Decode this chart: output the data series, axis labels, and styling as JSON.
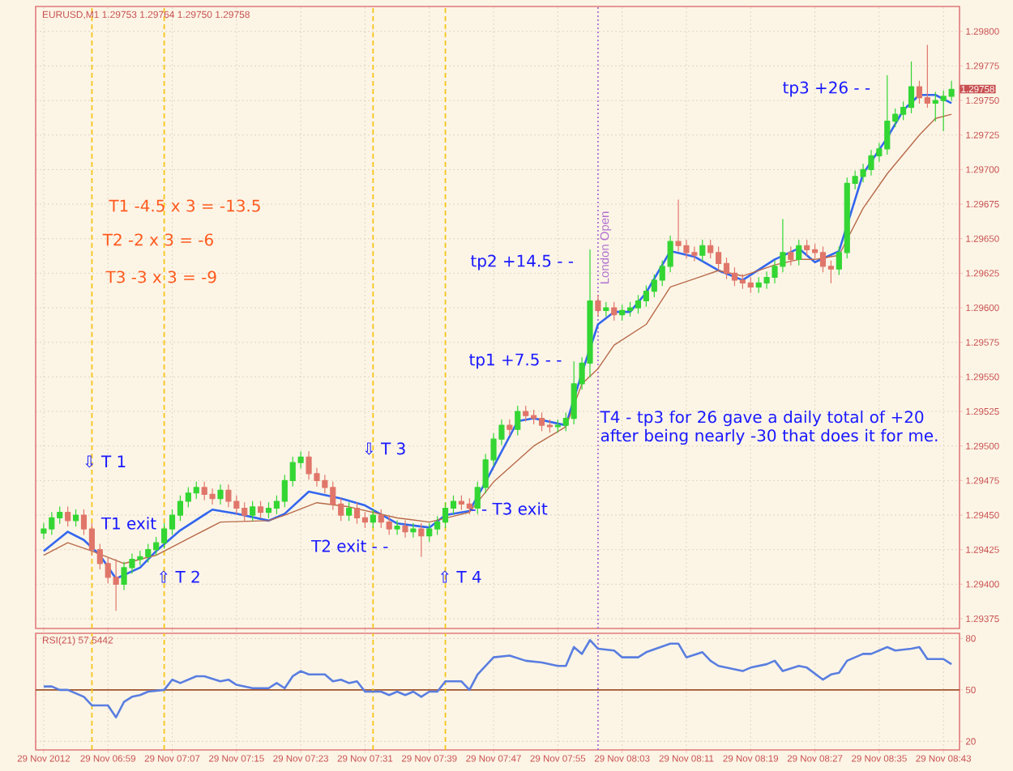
{
  "chart_data": [
    {
      "type": "candlestick",
      "title": "EURUSD,M1 1.29753 1.29764 1.29750 1.29758",
      "x": [
        "2012-11-29T06:51",
        "2012-11-29T06:52",
        "2012-11-29T06:53",
        "2012-11-29T06:54",
        "2012-11-29T06:55",
        "2012-11-29T06:56",
        "2012-11-29T06:57",
        "2012-11-29T06:58",
        "2012-11-29T06:59",
        "2012-11-29T07:00",
        "2012-11-29T07:01",
        "2012-11-29T07:02",
        "2012-11-29T07:03",
        "2012-11-29T07:04",
        "2012-11-29T07:05",
        "2012-11-29T07:06",
        "2012-11-29T07:07",
        "2012-11-29T07:08",
        "2012-11-29T07:09",
        "2012-11-29T07:10",
        "2012-11-29T07:11",
        "2012-11-29T07:12",
        "2012-11-29T07:13",
        "2012-11-29T07:14",
        "2012-11-29T07:15",
        "2012-11-29T07:16",
        "2012-11-29T07:17",
        "2012-11-29T07:18",
        "2012-11-29T07:19",
        "2012-11-29T07:20",
        "2012-11-29T07:21",
        "2012-11-29T07:22",
        "2012-11-29T07:23",
        "2012-11-29T07:24",
        "2012-11-29T07:25",
        "2012-11-29T07:26",
        "2012-11-29T07:27",
        "2012-11-29T07:28",
        "2012-11-29T07:29",
        "2012-11-29T07:30",
        "2012-11-29T07:31",
        "2012-11-29T07:32",
        "2012-11-29T07:33",
        "2012-11-29T07:34",
        "2012-11-29T07:35",
        "2012-11-29T07:36",
        "2012-11-29T07:37",
        "2012-11-29T07:38",
        "2012-11-29T07:39",
        "2012-11-29T07:40",
        "2012-11-29T07:41",
        "2012-11-29T07:42",
        "2012-11-29T07:43",
        "2012-11-29T07:44",
        "2012-11-29T07:45",
        "2012-11-29T07:46",
        "2012-11-29T07:47",
        "2012-11-29T07:48",
        "2012-11-29T07:49",
        "2012-11-29T07:50",
        "2012-11-29T07:51",
        "2012-11-29T07:52",
        "2012-11-29T07:53",
        "2012-11-29T07:54",
        "2012-11-29T07:55",
        "2012-11-29T07:56",
        "2012-11-29T07:57",
        "2012-11-29T07:58",
        "2012-11-29T07:59",
        "2012-11-29T08:00",
        "2012-11-29T08:01",
        "2012-11-29T08:02",
        "2012-11-29T08:03",
        "2012-11-29T08:04",
        "2012-11-29T08:05",
        "2012-11-29T08:06",
        "2012-11-29T08:07",
        "2012-11-29T08:08",
        "2012-11-29T08:09",
        "2012-11-29T08:10",
        "2012-11-29T08:11",
        "2012-11-29T08:12",
        "2012-11-29T08:13",
        "2012-11-29T08:14",
        "2012-11-29T08:15",
        "2012-11-29T08:16",
        "2012-11-29T08:17",
        "2012-11-29T08:18",
        "2012-11-29T08:19",
        "2012-11-29T08:20",
        "2012-11-29T08:21",
        "2012-11-29T08:22",
        "2012-11-29T08:23",
        "2012-11-29T08:24",
        "2012-11-29T08:25",
        "2012-11-29T08:26",
        "2012-11-29T08:27",
        "2012-11-29T08:28",
        "2012-11-29T08:29",
        "2012-11-29T08:30",
        "2012-11-29T08:31",
        "2012-11-29T08:32",
        "2012-11-29T08:33",
        "2012-11-29T08:34",
        "2012-11-29T08:35",
        "2012-11-29T08:36",
        "2012-11-29T08:37",
        "2012-11-29T08:38",
        "2012-11-29T08:39",
        "2012-11-29T08:40",
        "2012-11-29T08:41",
        "2012-11-29T08:42",
        "2012-11-29T08:43",
        "2012-11-29T08:44"
      ],
      "ohlc": [
        [
          1.29437,
          1.29444,
          1.29433,
          1.2944
        ],
        [
          1.2944,
          1.29452,
          1.29436,
          1.29448
        ],
        [
          1.29448,
          1.29456,
          1.29444,
          1.29452
        ],
        [
          1.29452,
          1.29456,
          1.29442,
          1.29446
        ],
        [
          1.29446,
          1.29454,
          1.29442,
          1.2945
        ],
        [
          1.2945,
          1.29454,
          1.29436,
          1.2944
        ],
        [
          1.2944,
          1.29444,
          1.29421,
          1.29425
        ],
        [
          1.29425,
          1.29429,
          1.29411,
          1.29415
        ],
        [
          1.29415,
          1.29419,
          1.29401,
          1.29405
        ],
        [
          1.29405,
          1.29418,
          1.29381,
          1.294
        ],
        [
          1.294,
          1.29416,
          1.29396,
          1.29412
        ],
        [
          1.29412,
          1.29422,
          1.29408,
          1.29418
        ],
        [
          1.29418,
          1.29424,
          1.29414,
          1.2942
        ],
        [
          1.2942,
          1.29429,
          1.29416,
          1.29425
        ],
        [
          1.29425,
          1.29434,
          1.29421,
          1.2943
        ],
        [
          1.2943,
          1.29444,
          1.29426,
          1.2944
        ],
        [
          1.2944,
          1.29454,
          1.29436,
          1.2945
        ],
        [
          1.2945,
          1.29464,
          1.29446,
          1.2946
        ],
        [
          1.2946,
          1.2947,
          1.29456,
          1.29466
        ],
        [
          1.29466,
          1.29474,
          1.29462,
          1.2947
        ],
        [
          1.2947,
          1.29474,
          1.29461,
          1.29465
        ],
        [
          1.29465,
          1.29469,
          1.29458,
          1.29462
        ],
        [
          1.29462,
          1.29472,
          1.29458,
          1.29468
        ],
        [
          1.29468,
          1.29472,
          1.29456,
          1.2946
        ],
        [
          1.2946,
          1.29464,
          1.29451,
          1.29455
        ],
        [
          1.29455,
          1.29459,
          1.29446,
          1.2945
        ],
        [
          1.2945,
          1.2946,
          1.29446,
          1.29456
        ],
        [
          1.29456,
          1.2946,
          1.29448,
          1.29452
        ],
        [
          1.29452,
          1.29459,
          1.29448,
          1.29455
        ],
        [
          1.29455,
          1.29464,
          1.29451,
          1.2946
        ],
        [
          1.2946,
          1.29479,
          1.29456,
          1.29475
        ],
        [
          1.29475,
          1.29492,
          1.29471,
          1.29488
        ],
        [
          1.29488,
          1.29496,
          1.29484,
          1.29492
        ],
        [
          1.29492,
          1.29496,
          1.29476,
          1.2948
        ],
        [
          1.2948,
          1.29484,
          1.29471,
          1.29475
        ],
        [
          1.29475,
          1.29479,
          1.29466,
          1.2947
        ],
        [
          1.2947,
          1.29474,
          1.29454,
          1.29458
        ],
        [
          1.29458,
          1.29462,
          1.29446,
          1.2945
        ],
        [
          1.2945,
          1.29459,
          1.29446,
          1.29455
        ],
        [
          1.29455,
          1.29459,
          1.29444,
          1.29448
        ],
        [
          1.29448,
          1.29452,
          1.29441,
          1.29445
        ],
        [
          1.29445,
          1.29454,
          1.29441,
          1.2945
        ],
        [
          1.2945,
          1.29454,
          1.29441,
          1.29445
        ],
        [
          1.29445,
          1.29449,
          1.29436,
          1.2944
        ],
        [
          1.2944,
          1.29446,
          1.29436,
          1.29442
        ],
        [
          1.29442,
          1.29446,
          1.29434,
          1.29438
        ],
        [
          1.29438,
          1.29444,
          1.29434,
          1.2944
        ],
        [
          1.2944,
          1.29444,
          1.2942,
          1.29435
        ],
        [
          1.29435,
          1.29444,
          1.29431,
          1.2944
        ],
        [
          1.2944,
          1.29449,
          1.29436,
          1.29445
        ],
        [
          1.29445,
          1.29459,
          1.29441,
          1.29455
        ],
        [
          1.29455,
          1.29464,
          1.29451,
          1.2946
        ],
        [
          1.2946,
          1.29464,
          1.29454,
          1.29458
        ],
        [
          1.29458,
          1.29462,
          1.29451,
          1.29455
        ],
        [
          1.29455,
          1.29474,
          1.29451,
          1.2947
        ],
        [
          1.2947,
          1.29494,
          1.29466,
          1.2949
        ],
        [
          1.2949,
          1.29509,
          1.29486,
          1.29505
        ],
        [
          1.29505,
          1.29519,
          1.29501,
          1.29515
        ],
        [
          1.29515,
          1.29519,
          1.29508,
          1.29512
        ],
        [
          1.29512,
          1.29529,
          1.29508,
          1.29525
        ],
        [
          1.29525,
          1.29529,
          1.29518,
          1.29522
        ],
        [
          1.29522,
          1.29526,
          1.29516,
          1.2952
        ],
        [
          1.2952,
          1.29524,
          1.29511,
          1.29515
        ],
        [
          1.29515,
          1.29519,
          1.2951,
          1.29514
        ],
        [
          1.29514,
          1.29519,
          1.2951,
          1.29515
        ],
        [
          1.29515,
          1.29524,
          1.29511,
          1.2952
        ],
        [
          1.2952,
          1.29561,
          1.29516,
          1.29545
        ],
        [
          1.29545,
          1.29564,
          1.29541,
          1.2956
        ],
        [
          1.2956,
          1.29642,
          1.2955,
          1.29605
        ],
        [
          1.29605,
          1.29609,
          1.29594,
          1.29598
        ],
        [
          1.29598,
          1.29604,
          1.29594,
          1.296
        ],
        [
          1.296,
          1.29604,
          1.29591,
          1.29595
        ],
        [
          1.29595,
          1.29602,
          1.29591,
          1.29598
        ],
        [
          1.29598,
          1.29604,
          1.29594,
          1.296
        ],
        [
          1.296,
          1.29609,
          1.29596,
          1.29605
        ],
        [
          1.29605,
          1.29616,
          1.29601,
          1.29612
        ],
        [
          1.29612,
          1.29624,
          1.29608,
          1.2962
        ],
        [
          1.2962,
          1.29634,
          1.29616,
          1.2963
        ],
        [
          1.2963,
          1.29652,
          1.29626,
          1.29648
        ],
        [
          1.29648,
          1.29678,
          1.29641,
          1.29645
        ],
        [
          1.29645,
          1.29649,
          1.29636,
          1.2964
        ],
        [
          1.2964,
          1.29644,
          1.29634,
          1.29638
        ],
        [
          1.29638,
          1.29649,
          1.29634,
          1.29645
        ],
        [
          1.29645,
          1.29649,
          1.29636,
          1.2964
        ],
        [
          1.2964,
          1.29644,
          1.29628,
          1.29632
        ],
        [
          1.29632,
          1.29636,
          1.29621,
          1.29625
        ],
        [
          1.29625,
          1.29629,
          1.29616,
          1.2962
        ],
        [
          1.2962,
          1.29624,
          1.29614,
          1.29618
        ],
        [
          1.29618,
          1.29622,
          1.29611,
          1.29615
        ],
        [
          1.29615,
          1.29622,
          1.29611,
          1.29618
        ],
        [
          1.29618,
          1.29626,
          1.29614,
          1.29622
        ],
        [
          1.29622,
          1.29634,
          1.29618,
          1.2963
        ],
        [
          1.2963,
          1.29664,
          1.29626,
          1.2964
        ],
        [
          1.2964,
          1.29644,
          1.29631,
          1.29635
        ],
        [
          1.29635,
          1.29649,
          1.29631,
          1.29645
        ],
        [
          1.29645,
          1.29649,
          1.29638,
          1.29642
        ],
        [
          1.29642,
          1.29646,
          1.29636,
          1.2964
        ],
        [
          1.2964,
          1.29644,
          1.29626,
          1.2963
        ],
        [
          1.2963,
          1.29634,
          1.29618,
          1.29628
        ],
        [
          1.29628,
          1.29644,
          1.29624,
          1.2964
        ],
        [
          1.2964,
          1.29694,
          1.29636,
          1.2969
        ],
        [
          1.2969,
          1.29699,
          1.29686,
          1.29695
        ],
        [
          1.29695,
          1.29704,
          1.29691,
          1.297
        ],
        [
          1.297,
          1.29714,
          1.29696,
          1.2971
        ],
        [
          1.2971,
          1.29719,
          1.29706,
          1.29715
        ],
        [
          1.29715,
          1.29768,
          1.29711,
          1.29735
        ],
        [
          1.29735,
          1.29744,
          1.29731,
          1.2974
        ],
        [
          1.2974,
          1.29749,
          1.29736,
          1.29745
        ],
        [
          1.29745,
          1.29778,
          1.29741,
          1.2976
        ],
        [
          1.2976,
          1.29764,
          1.29748,
          1.29752
        ],
        [
          1.29752,
          1.2979,
          1.29745,
          1.29748
        ],
        [
          1.29748,
          1.29756,
          1.29735,
          1.2975
        ],
        [
          1.2975,
          1.29757,
          1.29728,
          1.29753
        ],
        [
          1.29753,
          1.29764,
          1.2975,
          1.29758
        ]
      ],
      "series": [
        {
          "type": "line",
          "color": "#3366ee",
          "x": [
            "2012-11-29T06:51",
            "2012-11-29T06:54",
            "2012-11-29T06:56",
            "2012-11-29T06:58",
            "2012-11-29T07:00",
            "2012-11-29T07:03",
            "2012-11-29T07:05",
            "2012-11-29T07:08",
            "2012-11-29T07:12",
            "2012-11-29T07:15",
            "2012-11-29T07:19",
            "2012-11-29T07:21",
            "2012-11-29T07:24",
            "2012-11-29T07:28",
            "2012-11-29T07:31",
            "2012-11-29T07:35",
            "2012-11-29T07:39",
            "2012-11-29T07:41",
            "2012-11-29T07:44",
            "2012-11-29T07:46",
            "2012-11-29T07:50",
            "2012-11-29T07:52",
            "2012-11-29T07:56",
            "2012-11-29T07:58",
            "2012-11-29T08:00",
            "2012-11-29T08:02",
            "2012-11-29T08:04",
            "2012-11-29T08:06",
            "2012-11-29T08:09",
            "2012-11-29T08:12",
            "2012-11-29T08:15",
            "2012-11-29T08:18",
            "2012-11-29T08:22",
            "2012-11-29T08:25",
            "2012-11-29T08:27",
            "2012-11-29T08:30",
            "2012-11-29T08:33",
            "2012-11-29T08:36",
            "2012-11-29T08:38",
            "2012-11-29T08:40",
            "2012-11-29T08:42",
            "2012-11-29T08:44"
          ],
          "values": [
            1.29424,
            1.29438,
            1.29432,
            1.29421,
            1.29404,
            1.29412,
            1.29424,
            1.29439,
            1.29454,
            1.29451,
            1.29446,
            1.29451,
            1.29467,
            1.29462,
            1.29457,
            1.29444,
            1.29441,
            1.2945,
            1.29453,
            1.29474,
            1.29518,
            1.2952,
            1.29515,
            1.29553,
            1.29588,
            1.29597,
            1.29597,
            1.29611,
            1.29641,
            1.29637,
            1.29627,
            1.2962,
            1.29635,
            1.29643,
            1.29633,
            1.29641,
            1.29697,
            1.29723,
            1.29743,
            1.29754,
            1.29754,
            1.29748
          ]
        },
        {
          "type": "line",
          "color": "#b86a4a",
          "x": [
            "2012-11-29T06:51",
            "2012-11-29T06:54",
            "2012-11-29T06:57",
            "2012-11-29T07:01",
            "2012-11-29T07:05",
            "2012-11-29T07:10",
            "2012-11-29T07:13",
            "2012-11-29T07:19",
            "2012-11-29T07:21",
            "2012-11-29T07:25",
            "2012-11-29T07:29",
            "2012-11-29T07:35",
            "2012-11-29T07:39",
            "2012-11-29T07:44",
            "2012-11-29T07:47",
            "2012-11-29T07:52",
            "2012-11-29T07:56",
            "2012-11-29T07:58",
            "2012-11-29T08:00",
            "2012-11-29T08:02",
            "2012-11-29T08:06",
            "2012-11-29T08:09",
            "2012-11-29T08:13",
            "2012-11-29T08:15",
            "2012-11-29T08:18",
            "2012-11-29T08:22",
            "2012-11-29T08:25",
            "2012-11-29T08:27",
            "2012-11-29T08:30",
            "2012-11-29T08:33",
            "2012-11-29T08:36",
            "2012-11-29T08:40",
            "2012-11-29T08:42",
            "2012-11-29T08:44"
          ],
          "values": [
            1.29421,
            1.2943,
            1.29424,
            1.29415,
            1.29421,
            1.29436,
            1.29445,
            1.29446,
            1.2945,
            1.29459,
            1.29456,
            1.29448,
            1.29445,
            1.29452,
            1.29474,
            1.295,
            1.29514,
            1.29545,
            1.29556,
            1.29573,
            1.29588,
            1.29615,
            1.29623,
            1.29627,
            1.29623,
            1.29631,
            1.29635,
            1.29635,
            1.29638,
            1.29672,
            1.29697,
            1.29725,
            1.29737,
            1.2974
          ]
        }
      ],
      "xlim": [
        "2012-11-29T06:50",
        "2012-11-29T08:45"
      ],
      "ylim": [
        1.29368,
        1.29818
      ],
      "xticks": [
        {
          "value": "2012-11-29T06:51",
          "label": null
        },
        {
          "value": "2012-11-29T06:59",
          "label": null
        },
        {
          "value": "2012-11-29T07:07",
          "label": null
        },
        {
          "value": "2012-11-29T07:15",
          "label": null
        },
        {
          "value": "2012-11-29T07:23",
          "label": null
        },
        {
          "value": "2012-11-29T07:31",
          "label": null
        },
        {
          "value": "2012-11-29T07:39",
          "label": null
        },
        {
          "value": "2012-11-29T07:47",
          "label": null
        },
        {
          "value": "2012-11-29T07:55",
          "label": null
        },
        {
          "value": "2012-11-29T08:03",
          "label": null
        },
        {
          "value": "2012-11-29T08:11",
          "label": null
        },
        {
          "value": "2012-11-29T08:19",
          "label": null
        },
        {
          "value": "2012-11-29T08:27",
          "label": null
        },
        {
          "value": "2012-11-29T08:35",
          "label": null
        },
        {
          "value": "2012-11-29T08:43",
          "label": null
        }
      ],
      "yticks": [
        {
          "value": 1.29375,
          "label": "1.29375"
        },
        {
          "value": 1.294,
          "label": "1.29400"
        },
        {
          "value": 1.29425,
          "label": "1.29425"
        },
        {
          "value": 1.2945,
          "label": "1.29450"
        },
        {
          "value": 1.29475,
          "label": "1.29475"
        },
        {
          "value": 1.295,
          "label": "1.29500"
        },
        {
          "value": 1.29525,
          "label": "1.29525"
        },
        {
          "value": 1.2955,
          "label": "1.29550"
        },
        {
          "value": 1.29575,
          "label": "1.29575"
        },
        {
          "value": 1.296,
          "label": "1.29600"
        },
        {
          "value": 1.29625,
          "label": "1.29625"
        },
        {
          "value": 1.2965,
          "label": "1.29650"
        },
        {
          "value": 1.29675,
          "label": "1.29675"
        },
        {
          "value": 1.297,
          "label": "1.29700"
        },
        {
          "value": 1.29725,
          "label": "1.29725"
        },
        {
          "value": 1.2975,
          "label": "1.29750"
        },
        {
          "value": 1.29775,
          "label": "1.29775"
        },
        {
          "value": 1.298,
          "label": "1.29800"
        }
      ],
      "grid": true,
      "tick_labels": "y",
      "ref_lines": [
        {
          "axis": "x",
          "value": "2012-11-29T06:57",
          "color": "#f5c518",
          "line_style": "dashed"
        },
        {
          "axis": "x",
          "value": "2012-11-29T07:06",
          "color": "#f5c518",
          "line_style": "dashed"
        },
        {
          "axis": "x",
          "value": "2012-11-29T07:32",
          "color": "#f5c518",
          "line_style": "dashed"
        },
        {
          "axis": "x",
          "value": "2012-11-29T07:41",
          "color": "#f5c518",
          "line_style": "dashed"
        },
        {
          "axis": "x",
          "value": "2012-11-29T08:00",
          "color": "#b070d0",
          "line_style": "dotted",
          "label": "London Open"
        }
      ],
      "annotations": [
        "T1 -4.5 x 3 = -13.5",
        "T2 -2 x 3 = -6",
        "T3 -3 x 3 = -9",
        "⇩ T 1",
        "T1 exit",
        "⇧ T 2",
        "T2 exit - -",
        "⇩ T 3",
        "⇧ T 4",
        "- - T3 exit",
        "tp1 +7.5 - -",
        "tp2 +14.5 - -",
        "tp3 +26 - -",
        "T4 - tp3 for 26 gave a daily total of +20 after being nearly -30 that does it for me.",
        "1.29758"
      ]
    },
    {
      "type": "line",
      "title": "RSI(21) 57.5442",
      "series": [
        {
          "color": "#5a7ee0",
          "x": [
            "2012-11-29T06:51",
            "2012-11-29T06:52",
            "2012-11-29T06:53",
            "2012-11-29T06:54",
            "2012-11-29T06:56",
            "2012-11-29T06:57",
            "2012-11-29T06:58",
            "2012-11-29T06:59",
            "2012-11-29T07:00",
            "2012-11-29T07:01",
            "2012-11-29T07:02",
            "2012-11-29T07:03",
            "2012-11-29T07:04",
            "2012-11-29T07:06",
            "2012-11-29T07:07",
            "2012-11-29T07:08",
            "2012-11-29T07:10",
            "2012-11-29T07:11",
            "2012-11-29T07:13",
            "2012-11-29T07:14",
            "2012-11-29T07:15",
            "2012-11-29T07:17",
            "2012-11-29T07:19",
            "2012-11-29T07:20",
            "2012-11-29T07:21",
            "2012-11-29T07:22",
            "2012-11-29T07:23",
            "2012-11-29T07:24",
            "2012-11-29T07:26",
            "2012-11-29T07:27",
            "2012-11-29T07:28",
            "2012-11-29T07:29",
            "2012-11-29T07:30",
            "2012-11-29T07:31",
            "2012-11-29T07:33",
            "2012-11-29T07:34",
            "2012-11-29T07:35",
            "2012-11-29T07:36",
            "2012-11-29T07:37",
            "2012-11-29T07:38",
            "2012-11-29T07:39",
            "2012-11-29T07:40",
            "2012-11-29T07:41",
            "2012-11-29T07:43",
            "2012-11-29T07:44",
            "2012-11-29T07:45",
            "2012-11-29T07:47",
            "2012-11-29T07:49",
            "2012-11-29T07:51",
            "2012-11-29T07:53",
            "2012-11-29T07:55",
            "2012-11-29T07:56",
            "2012-11-29T07:57",
            "2012-11-29T07:58",
            "2012-11-29T07:59",
            "2012-11-29T08:00",
            "2012-11-29T08:02",
            "2012-11-29T08:03",
            "2012-11-29T08:05",
            "2012-11-29T08:06",
            "2012-11-29T08:09",
            "2012-11-29T08:10",
            "2012-11-29T08:11",
            "2012-11-29T08:13",
            "2012-11-29T08:14",
            "2012-11-29T08:15",
            "2012-11-29T08:17",
            "2012-11-29T08:18",
            "2012-11-29T08:19",
            "2012-11-29T08:21",
            "2012-11-29T08:22",
            "2012-11-29T08:23",
            "2012-11-29T08:25",
            "2012-11-29T08:26",
            "2012-11-29T08:28",
            "2012-11-29T08:29",
            "2012-11-29T08:30",
            "2012-11-29T08:31",
            "2012-11-29T08:33",
            "2012-11-29T08:34",
            "2012-11-29T08:36",
            "2012-11-29T08:37",
            "2012-11-29T08:39",
            "2012-11-29T08:40",
            "2012-11-29T08:41",
            "2012-11-29T08:43",
            "2012-11-29T08:44"
          ],
          "values": [
            52,
            52,
            50,
            50,
            46,
            41,
            41,
            41,
            34,
            43,
            46,
            47,
            49,
            50,
            56,
            54,
            58,
            58,
            55,
            56,
            53,
            51,
            51,
            54,
            51,
            58,
            61,
            59,
            59,
            55,
            56,
            54,
            55,
            49,
            49,
            47,
            49,
            47,
            49,
            46,
            49,
            49,
            55,
            55,
            50,
            59,
            69,
            70,
            67,
            66,
            64,
            64,
            75,
            71,
            79,
            74,
            73,
            69,
            69,
            72,
            77,
            77,
            69,
            72,
            67,
            64,
            62,
            61,
            63,
            65,
            67,
            61,
            64,
            63,
            56,
            59,
            60,
            67,
            71,
            71,
            75,
            73,
            74,
            75,
            68,
            68,
            65
          ]
        }
      ],
      "xlim": [
        "2012-11-29T06:50",
        "2012-11-29T08:45"
      ],
      "ylim": [
        15,
        83
      ],
      "xticks": [
        {
          "value": "2012-11-29T06:51",
          "label": "29 Nov 2012"
        },
        {
          "value": "2012-11-29T06:59",
          "label": "29 Nov 06:59"
        },
        {
          "value": "2012-11-29T07:07",
          "label": "29 Nov 07:07"
        },
        {
          "value": "2012-11-29T07:15",
          "label": "29 Nov 07:15"
        },
        {
          "value": "2012-11-29T07:23",
          "label": "29 Nov 07:23"
        },
        {
          "value": "2012-11-29T07:31",
          "label": "29 Nov 07:31"
        },
        {
          "value": "2012-11-29T07:39",
          "label": "29 Nov 07:39"
        },
        {
          "value": "2012-11-29T07:47",
          "label": "29 Nov 07:47"
        },
        {
          "value": "2012-11-29T07:55",
          "label": "29 Nov 07:55"
        },
        {
          "value": "2012-11-29T08:03",
          "label": "29 Nov 08:03"
        },
        {
          "value": "2012-11-29T08:11",
          "label": "29 Nov 08:11"
        },
        {
          "value": "2012-11-29T08:19",
          "label": "29 Nov 08:19"
        },
        {
          "value": "2012-11-29T08:27",
          "label": "29 Nov 08:27"
        },
        {
          "value": "2012-11-29T08:35",
          "label": "29 Nov 08:35"
        },
        {
          "value": "2012-11-29T08:43",
          "label": "29 Nov 08:43"
        }
      ],
      "yticks": [
        20,
        50,
        80
      ],
      "grid": true,
      "ref_lines": [
        {
          "axis": "y",
          "value": 50,
          "color": "#a0522d",
          "line_style": "solid"
        },
        {
          "axis": "x",
          "value": "2012-11-29T06:57",
          "color": "#f5c518",
          "line_style": "dashed"
        },
        {
          "axis": "x",
          "value": "2012-11-29T07:06",
          "color": "#f5c518",
          "line_style": "dashed"
        },
        {
          "axis": "x",
          "value": "2012-11-29T07:32",
          "color": "#f5c518",
          "line_style": "dashed"
        },
        {
          "axis": "x",
          "value": "2012-11-29T07:41",
          "color": "#f5c518",
          "line_style": "dashed"
        },
        {
          "axis": "x",
          "value": "2012-11-29T08:00",
          "color": "#b070d0",
          "line_style": "dotted"
        }
      ]
    }
  ]
}
